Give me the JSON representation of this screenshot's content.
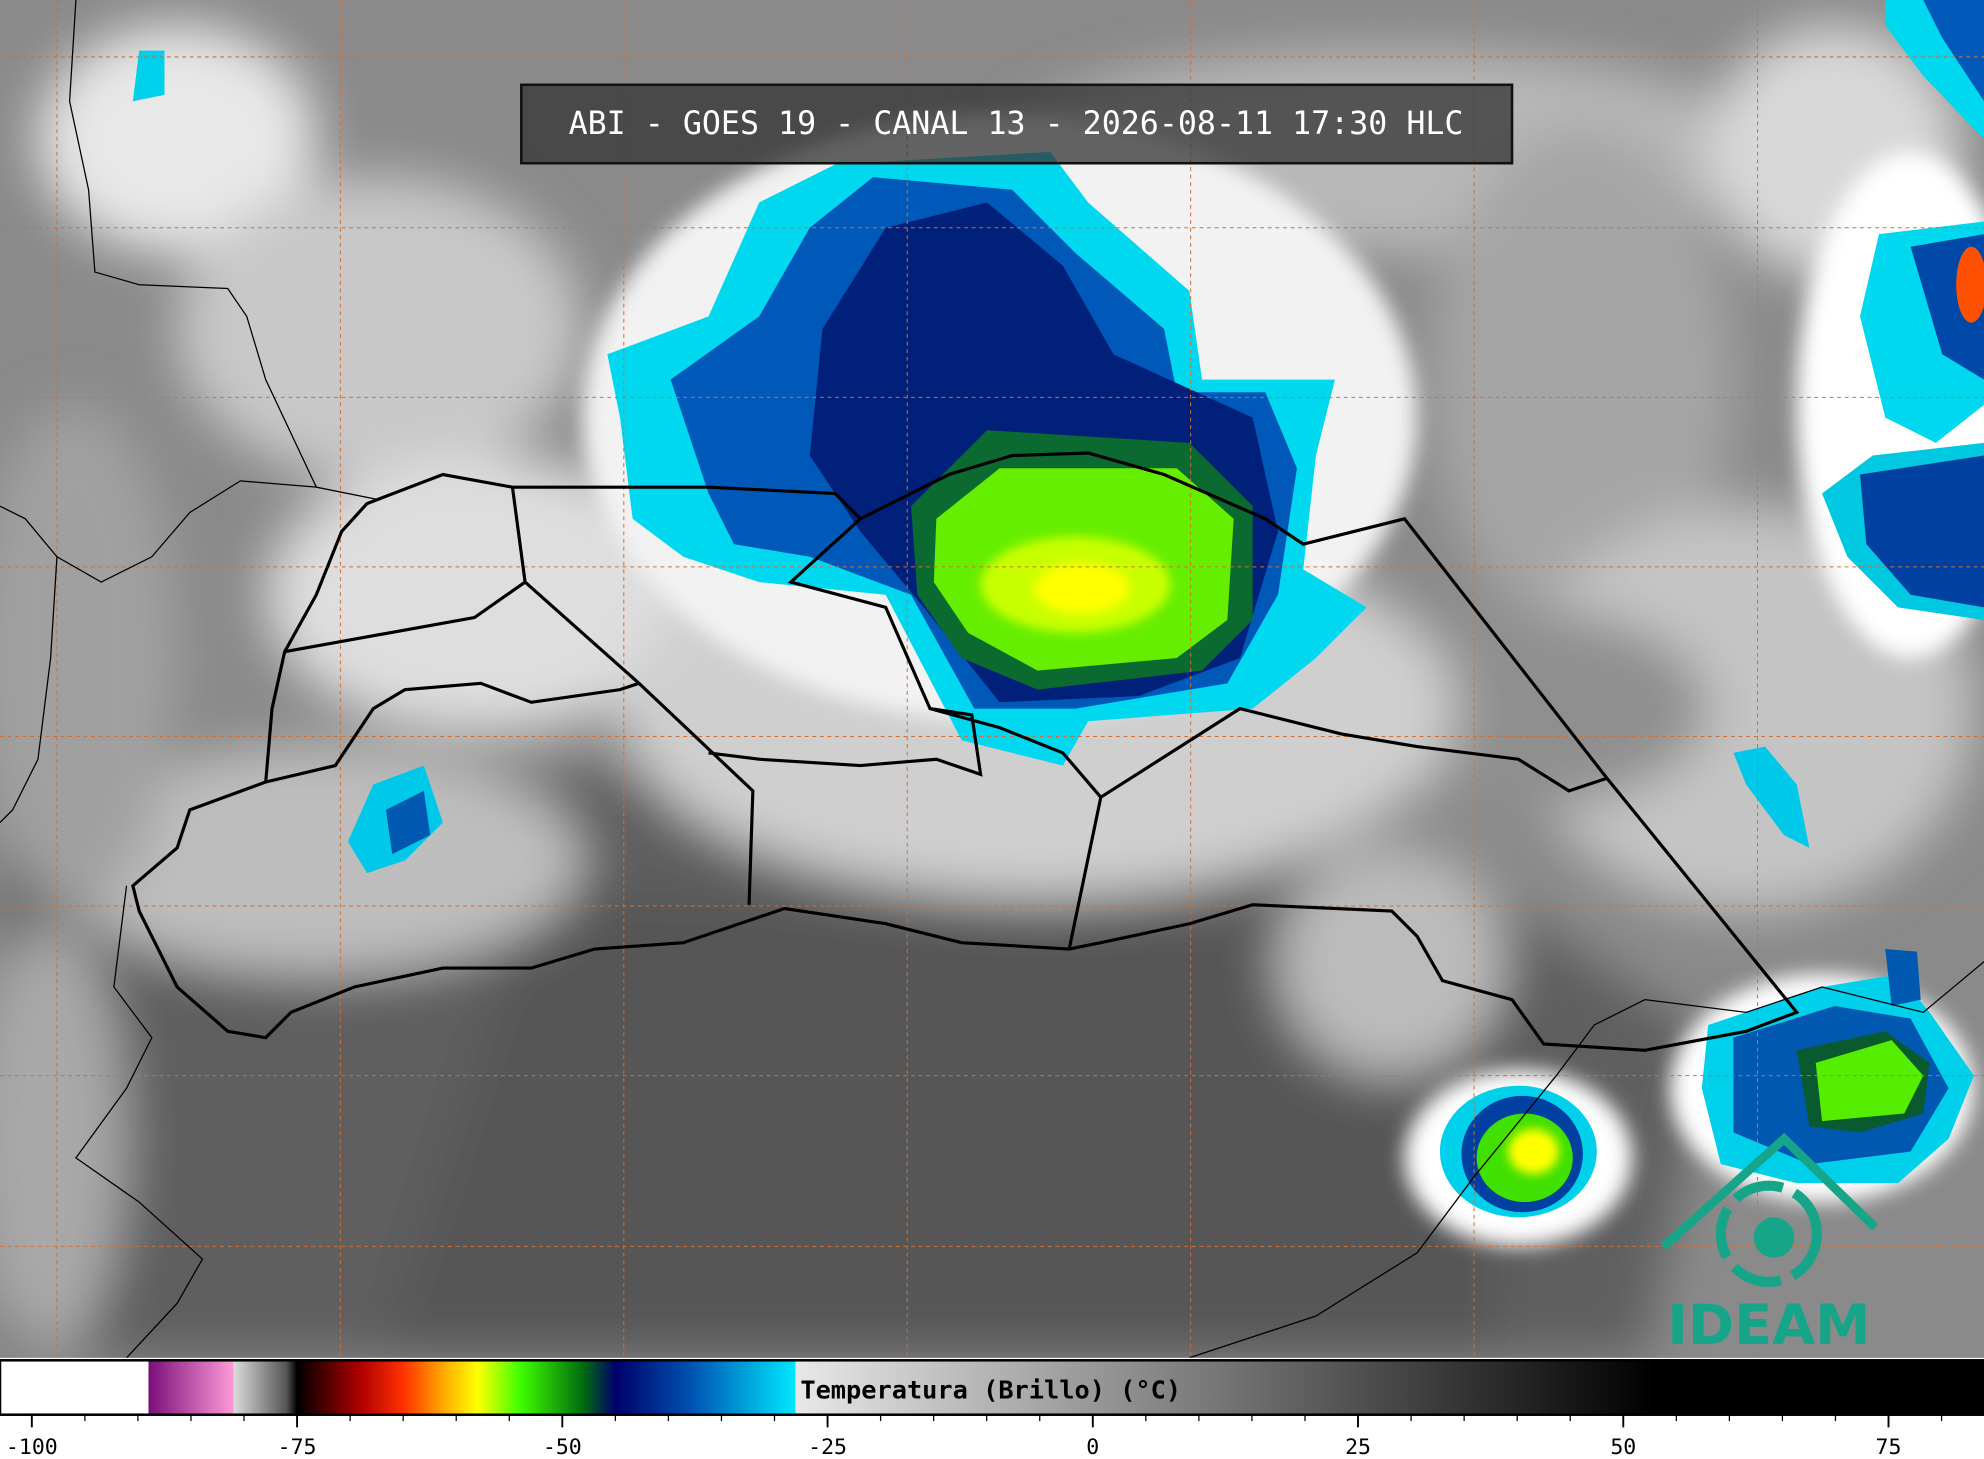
{
  "header": {
    "title": "ABI - GOES 19 - CANAL 13 - 2026-08-11 17:30 HLC"
  },
  "colorbar": {
    "label": "Temperatura (Brillo) (°C)",
    "range": [
      -103,
      84
    ],
    "ticks": [
      -100,
      -75,
      -50,
      -25,
      0,
      25,
      50,
      75
    ],
    "minor_step": 5,
    "stops": [
      {
        "value": -103,
        "color": "#ffffff"
      },
      {
        "value": -89,
        "color": "#ffffff"
      },
      {
        "value": -89,
        "color": "#7a0f7a"
      },
      {
        "value": -81,
        "color": "#ff9ad8"
      },
      {
        "value": -81,
        "color": "#dcdcdc"
      },
      {
        "value": -76,
        "color": "#555555"
      },
      {
        "value": -75,
        "color": "#000000"
      },
      {
        "value": -69,
        "color": "#b00000"
      },
      {
        "value": -65,
        "color": "#ff3000"
      },
      {
        "value": -61,
        "color": "#ffb000"
      },
      {
        "value": -58,
        "color": "#ffff00"
      },
      {
        "value": -54,
        "color": "#40ff00"
      },
      {
        "value": -48,
        "color": "#006a10"
      },
      {
        "value": -45,
        "color": "#00006a"
      },
      {
        "value": -38,
        "color": "#0050b0"
      },
      {
        "value": -28,
        "color": "#00e8ff"
      },
      {
        "value": -28,
        "color": "#e8e8e8"
      },
      {
        "value": 53,
        "color": "#000000"
      },
      {
        "value": 84,
        "color": "#000000"
      }
    ]
  },
  "logo": {
    "text": "IDEAM"
  }
}
